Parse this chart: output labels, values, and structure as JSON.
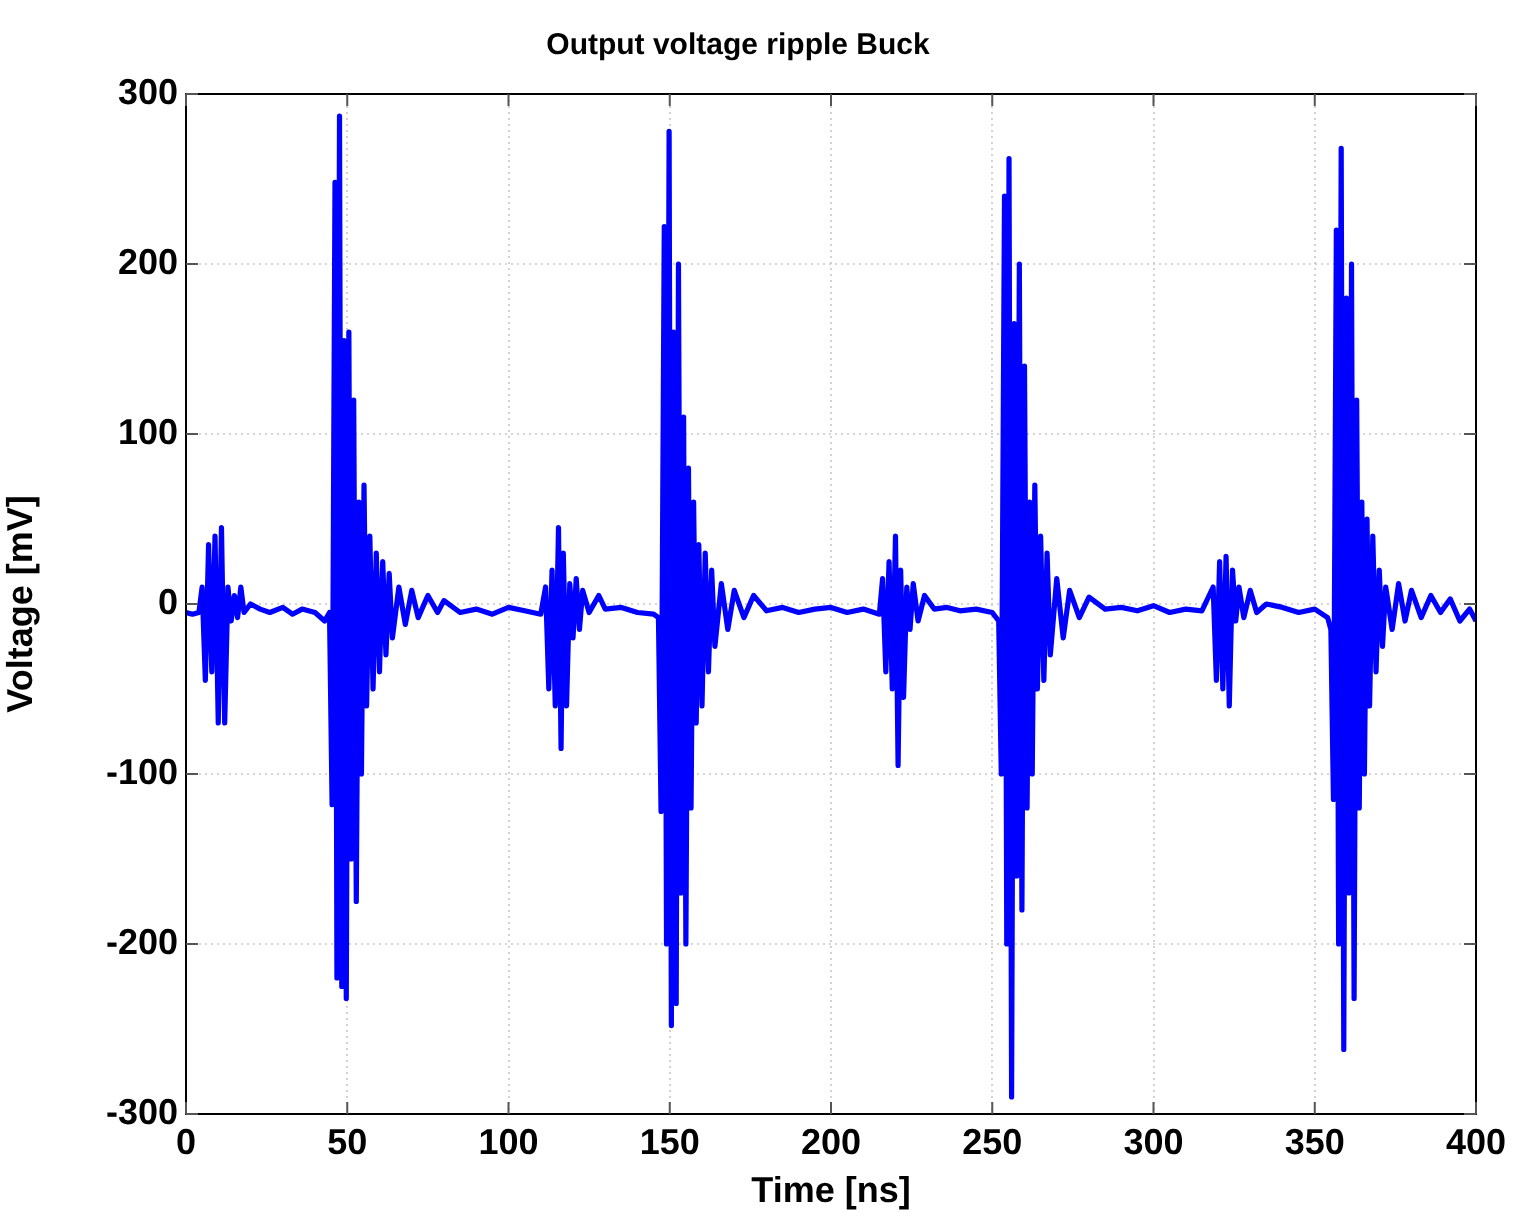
{
  "chart_data": {
    "type": "line",
    "title": "Output voltage ripple Buck",
    "xlabel": "Time [ns]",
    "ylabel": "Voltage [mV]",
    "xlim": [
      0,
      400
    ],
    "xticks": [
      0,
      50,
      100,
      150,
      200,
      250,
      300,
      350,
      400
    ],
    "ylim": [
      -300,
      300
    ],
    "yticks": [
      -300,
      -200,
      -100,
      0,
      100,
      200,
      300
    ],
    "grid": true,
    "legend": false,
    "marker": "none",
    "line_style": "solid",
    "series": [
      {
        "color": "#0000ff",
        "x": [
          0,
          2,
          4,
          5,
          6,
          7,
          8,
          9,
          10,
          11,
          12,
          13,
          14,
          15,
          16,
          17,
          18,
          20,
          23,
          26,
          30,
          33,
          36,
          40,
          43,
          44.5,
          45.3,
          46.2,
          46.8,
          47.6,
          48.3,
          49,
          49.7,
          50.5,
          51.2,
          52,
          52.8,
          53.6,
          54.4,
          55.2,
          56,
          57,
          58,
          59,
          60,
          61,
          62,
          63,
          64,
          66,
          68,
          70,
          72,
          75,
          78,
          80,
          85,
          90,
          95,
          100,
          105,
          110,
          111.5,
          112.5,
          113.5,
          114.5,
          115.5,
          116.3,
          117,
          118,
          119,
          120,
          121,
          122,
          123,
          125,
          128,
          130,
          135,
          140,
          145,
          146.5,
          147.3,
          148.3,
          149,
          149.8,
          150.5,
          151.2,
          152,
          152.7,
          153.5,
          154.3,
          155,
          155.8,
          156.6,
          157.4,
          158.2,
          159,
          160,
          161,
          162,
          163,
          164,
          166,
          168,
          170,
          173,
          176,
          180,
          185,
          190,
          195,
          200,
          205,
          210,
          215,
          216,
          217,
          218,
          219,
          220,
          220.8,
          221.6,
          222.5,
          223.5,
          224.5,
          225.5,
          227,
          229,
          232,
          236,
          240,
          245,
          250,
          252,
          252.8,
          253.8,
          254.5,
          255.2,
          256,
          256.8,
          257.6,
          258.4,
          259.2,
          260,
          260.8,
          261.6,
          262.4,
          263.2,
          264,
          265,
          266,
          267,
          268,
          270,
          272,
          274,
          277,
          280,
          285,
          290,
          295,
          300,
          305,
          310,
          315,
          318.5,
          319.5,
          320.5,
          321.5,
          322.5,
          323.5,
          324.5,
          325.5,
          326.5,
          328,
          330,
          332,
          335,
          340,
          345,
          350,
          354,
          355,
          355.8,
          356.7,
          357.4,
          358.2,
          359,
          359.8,
          360.6,
          361.4,
          362.2,
          363,
          363.8,
          364.6,
          365.4,
          366.2,
          367,
          368,
          369,
          370,
          371,
          372,
          374,
          376,
          378,
          380,
          383,
          386,
          389,
          392,
          395,
          398,
          400
        ],
        "values": [
          -5,
          -6,
          -5,
          10,
          -45,
          35,
          -40,
          40,
          -70,
          45,
          -70,
          10,
          -10,
          5,
          -8,
          10,
          -5,
          0,
          -3,
          -5,
          -2,
          -6,
          -3,
          -5,
          -10,
          -5,
          -118,
          248,
          -220,
          287,
          -225,
          155,
          -232,
          160,
          -150,
          120,
          -175,
          60,
          -100,
          70,
          -60,
          40,
          -50,
          30,
          -40,
          25,
          -30,
          18,
          -20,
          10,
          -12,
          8,
          -8,
          5,
          -5,
          2,
          -5,
          -3,
          -6,
          -2,
          -4,
          -6,
          10,
          -50,
          20,
          -60,
          45,
          -85,
          30,
          -60,
          12,
          -20,
          15,
          -15,
          8,
          -5,
          5,
          -3,
          -2,
          -5,
          -6,
          -8,
          -122,
          222,
          -200,
          278,
          -248,
          160,
          -235,
          200,
          -170,
          110,
          -200,
          80,
          -120,
          60,
          -70,
          35,
          -60,
          30,
          -40,
          20,
          -25,
          12,
          -15,
          8,
          -8,
          5,
          -4,
          -2,
          -5,
          -3,
          -2,
          -5,
          -3,
          -6,
          15,
          -40,
          25,
          -50,
          40,
          -95,
          20,
          -55,
          10,
          -15,
          12,
          -10,
          5,
          -3,
          -2,
          -4,
          -3,
          -5,
          -10,
          -100,
          240,
          -200,
          262,
          -290,
          165,
          -160,
          200,
          -180,
          140,
          -120,
          60,
          -100,
          70,
          -50,
          40,
          -45,
          30,
          -30,
          15,
          -20,
          8,
          -8,
          4,
          -3,
          -2,
          -4,
          -1,
          -5,
          -3,
          -4,
          10,
          -45,
          25,
          -50,
          28,
          -60,
          20,
          -10,
          10,
          -8,
          8,
          -5,
          0,
          -2,
          -5,
          -3,
          -8,
          -15,
          -115,
          220,
          -200,
          268,
          -262,
          180,
          -170,
          200,
          -232,
          120,
          -120,
          60,
          -100,
          50,
          -60,
          40,
          -40,
          20,
          -25,
          10,
          -15,
          12,
          -10,
          8,
          -8,
          5,
          -5,
          3,
          -10,
          -3,
          -10
        ]
      }
    ]
  }
}
